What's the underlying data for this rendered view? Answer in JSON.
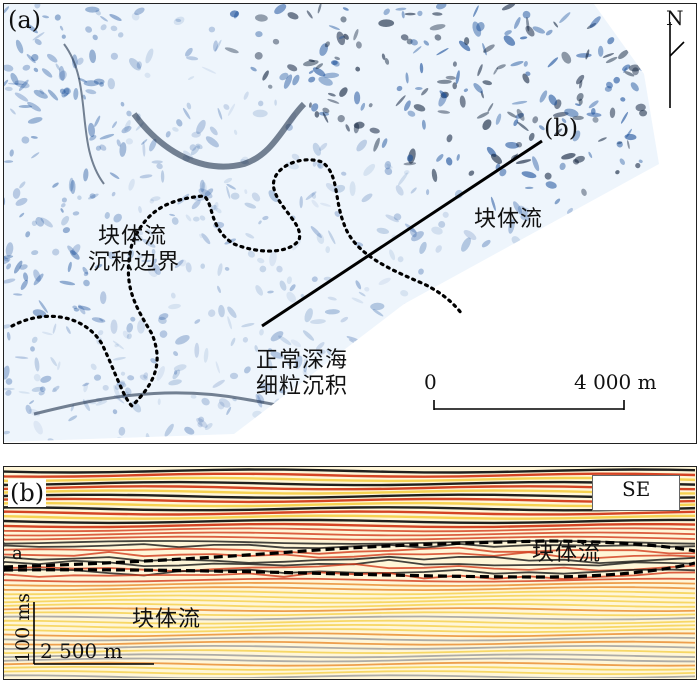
{
  "panel_a": {
    "label": "(a)",
    "profile_label": "(b)",
    "north_label": "N",
    "regions": {
      "mass_flow": "块体流",
      "boundary_line1": "块体流",
      "boundary_line2": "沉积边界",
      "normal_line1": "正常深海",
      "normal_line2": "细粒沉积"
    },
    "scale": {
      "start": "0",
      "end": "4 000 m"
    }
  },
  "panel_b": {
    "label": "(b)",
    "direction": "SE",
    "horizon": "a",
    "mass_flow_upper": "块体流",
    "mass_flow_lower": "块体流",
    "vertical_scale": "100 ms",
    "horizontal_scale": "2 500 m"
  },
  "colors": {
    "seismic_blue": "#1a4f9a",
    "seismic_dark": "#0d1f3a",
    "amp_red": "#d23a1a",
    "amp_black": "#141414",
    "amp_yellow": "#f5d04a"
  }
}
